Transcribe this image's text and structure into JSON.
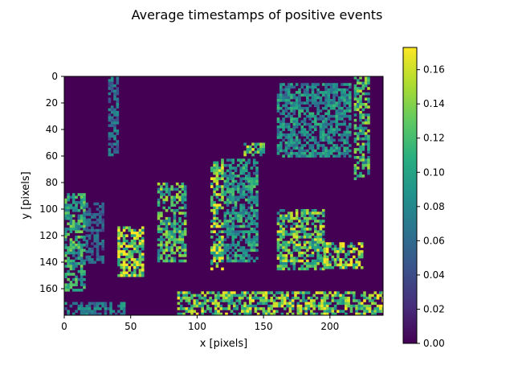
{
  "chart_data": {
    "type": "heatmap",
    "title": "Average timestamps of positive events",
    "xlabel": "x [pixels]",
    "ylabel": "y [pixels]",
    "xlim": [
      0,
      240
    ],
    "ylim": [
      180,
      0
    ],
    "x_ticks": [
      "0",
      "50",
      "100",
      "150",
      "200"
    ],
    "y_ticks": [
      "0",
      "20",
      "40",
      "60",
      "80",
      "100",
      "120",
      "140",
      "160"
    ],
    "colorbar": {
      "colormap": "viridis",
      "range": [
        0,
        0.173
      ],
      "tick_values": [
        0.0,
        0.02,
        0.04,
        0.06,
        0.08,
        0.1,
        0.12,
        0.14,
        0.16
      ],
      "ticks": [
        "0.00",
        "0.02",
        "0.04",
        "0.06",
        "0.08",
        "0.10",
        "0.12",
        "0.14",
        "0.16"
      ]
    },
    "background_value": 0.0,
    "regions": [
      {
        "x": [
          0,
          16
        ],
        "y": [
          88,
          162
        ],
        "value": 0.11
      },
      {
        "x": [
          16,
          30
        ],
        "y": [
          95,
          140
        ],
        "value": 0.06
      },
      {
        "x": [
          33,
          41
        ],
        "y": [
          0,
          60
        ],
        "value": 0.07
      },
      {
        "x": [
          40,
          60
        ],
        "y": [
          113,
          150
        ],
        "value": 0.15
      },
      {
        "x": [
          70,
          92
        ],
        "y": [
          80,
          140
        ],
        "value": 0.12
      },
      {
        "x": [
          110,
          120
        ],
        "y": [
          62,
          145
        ],
        "value": 0.14
      },
      {
        "x": [
          120,
          145
        ],
        "y": [
          62,
          140
        ],
        "value": 0.1
      },
      {
        "x": [
          135,
          150
        ],
        "y": [
          50,
          60
        ],
        "value": 0.13
      },
      {
        "x": [
          160,
          195
        ],
        "y": [
          100,
          145
        ],
        "value": 0.13
      },
      {
        "x": [
          195,
          225
        ],
        "y": [
          125,
          145
        ],
        "value": 0.15
      },
      {
        "x": [
          160,
          215
        ],
        "y": [
          5,
          60
        ],
        "value": 0.09
      },
      {
        "x": [
          218,
          230
        ],
        "y": [
          0,
          78
        ],
        "value": 0.12
      },
      {
        "x": [
          85,
          240
        ],
        "y": [
          162,
          180
        ],
        "value": 0.14
      },
      {
        "x": [
          0,
          45
        ],
        "y": [
          170,
          180
        ],
        "value": 0.08
      }
    ]
  }
}
